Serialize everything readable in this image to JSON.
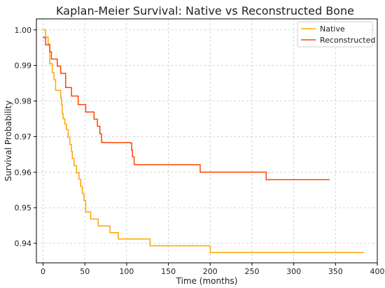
{
  "chart_data": {
    "type": "line",
    "step": true,
    "title": "Kaplan-Meier Survival: Native vs Reconstructed Bone",
    "xlabel": "Time (months)",
    "ylabel": "Survival Probability",
    "xlim": [
      -8,
      400
    ],
    "ylim": [
      0.9345,
      1.0031
    ],
    "xticks": [
      0,
      50,
      100,
      150,
      200,
      250,
      300,
      350,
      400
    ],
    "yticks": [
      0.94,
      0.95,
      0.96,
      0.97,
      0.98,
      0.99,
      1.0
    ],
    "ytick_labels": [
      "0.94",
      "0.95",
      "0.96",
      "0.97",
      "0.98",
      "0.99",
      "1.00"
    ],
    "grid": true,
    "legend_position": "top-right",
    "series": [
      {
        "name": "Native",
        "color": "#ffa500",
        "x": [
          0,
          3,
          6,
          8,
          11,
          13,
          15,
          21,
          22,
          23,
          24,
          26,
          28,
          30,
          32,
          34,
          35,
          37,
          40,
          43,
          45,
          47,
          49,
          51,
          57,
          66,
          80,
          90,
          128,
          200,
          384
        ],
        "y": [
          1.0,
          0.998,
          0.996,
          0.9905,
          0.988,
          0.986,
          0.983,
          0.981,
          0.979,
          0.9765,
          0.975,
          0.9735,
          0.972,
          0.9698,
          0.9678,
          0.9658,
          0.9638,
          0.9618,
          0.9598,
          0.958,
          0.956,
          0.954,
          0.952,
          0.9488,
          0.9468,
          0.9449,
          0.943,
          0.9412,
          0.9393,
          0.9374,
          0.9374
        ]
      },
      {
        "name": "Reconstructed",
        "color": "#ff4500",
        "x": [
          0,
          1,
          3,
          8,
          10,
          17,
          21,
          27,
          34,
          42,
          51,
          61,
          65,
          68,
          70,
          71,
          104,
          106,
          107,
          109,
          110,
          188,
          200,
          267,
          343
        ],
        "y": [
          0.998,
          0.9978,
          0.9958,
          0.9938,
          0.9918,
          0.9898,
          0.9878,
          0.9838,
          0.9814,
          0.979,
          0.9769,
          0.9749,
          0.9729,
          0.9708,
          0.9684,
          0.9683,
          0.9682,
          0.9662,
          0.9643,
          0.9622,
          0.9621,
          0.96,
          0.96,
          0.9579,
          0.9579
        ]
      }
    ]
  }
}
